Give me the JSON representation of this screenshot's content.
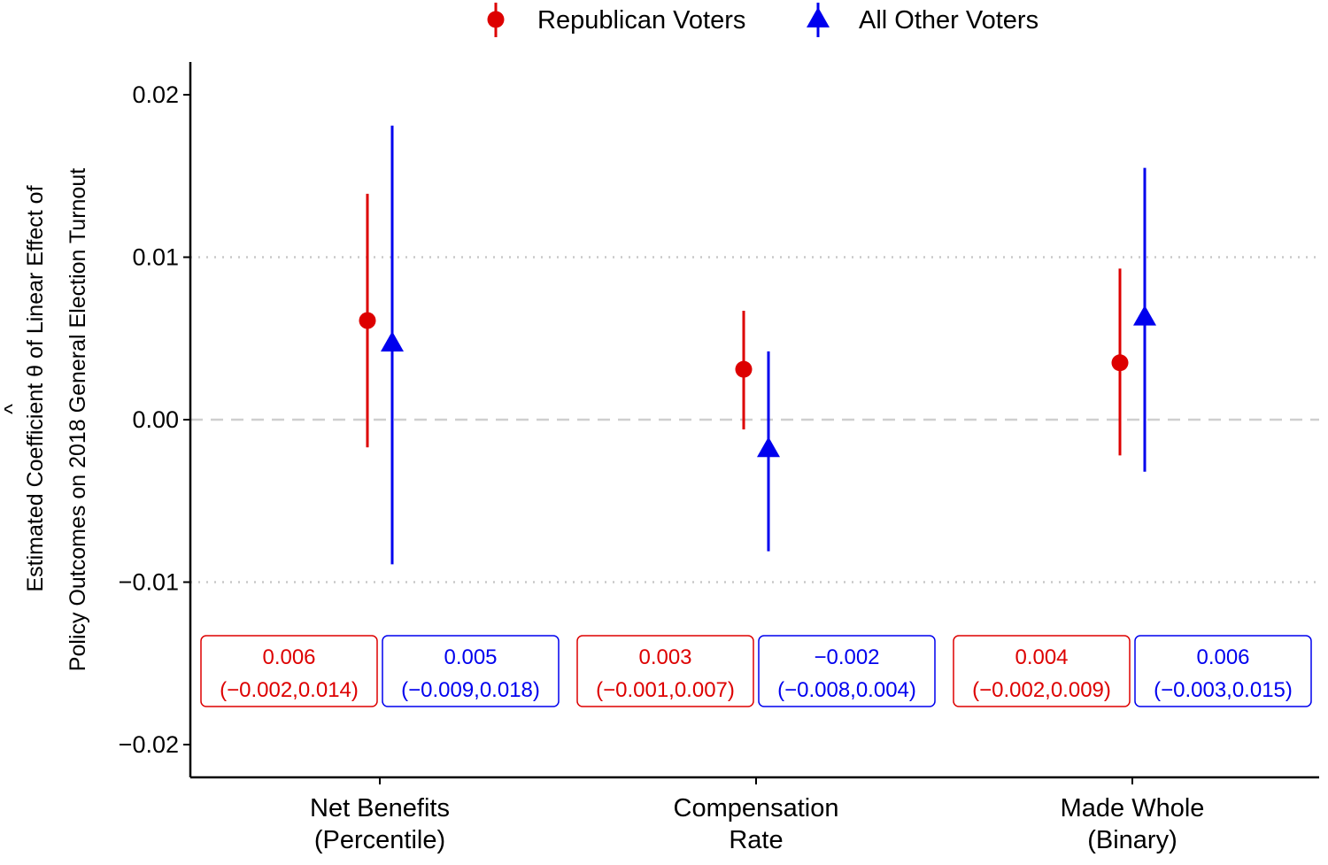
{
  "chart_data": {
    "type": "scatter",
    "title": "",
    "ylabel_line1": "Estimated Coefficient θ of Linear Effect of",
    "ylabel_hat": "^",
    "ylabel_line2": "Policy Outcomes on 2018 General Election Turnout",
    "xlabel": "",
    "ylim": [
      -0.022,
      0.022
    ],
    "yticks": [
      0.02,
      0.01,
      0.0,
      -0.01,
      -0.02
    ],
    "ytick_labels": [
      "0.02",
      "0.01",
      "0.00",
      "−0.01",
      "−0.02"
    ],
    "categories": [
      {
        "line1": "Net Benefits",
        "line2": "(Percentile)"
      },
      {
        "line1": "Compensation",
        "line2": "Rate"
      },
      {
        "line1": "Made Whole",
        "line2": "(Binary)"
      }
    ],
    "grid": "dotted horizontal at ±0.01, dashed at 0",
    "legend_position": "top",
    "series": [
      {
        "name": "Republican Voters",
        "color": "#dd0000",
        "marker": "circle",
        "estimates": [
          0.0061,
          0.0031,
          0.0035
        ],
        "ci_low": [
          -0.0017,
          -0.0006,
          -0.0022
        ],
        "ci_high": [
          0.0139,
          0.0067,
          0.0093
        ],
        "box_value_labels": [
          "0.006",
          "0.003",
          "0.004"
        ],
        "box_ci_labels": [
          "(−0.002,0.014)",
          "(−0.001,0.007)",
          "(−0.002,0.009)"
        ]
      },
      {
        "name": "All Other Voters",
        "color": "#0000ee",
        "marker": "triangle",
        "estimates": [
          0.0047,
          -0.0018,
          0.0063
        ],
        "ci_low": [
          -0.0089,
          -0.0081,
          -0.0032
        ],
        "ci_high": [
          0.0181,
          0.0042,
          0.0155
        ],
        "box_value_labels": [
          "0.005",
          "−0.002",
          "0.006"
        ],
        "box_ci_labels": [
          "(−0.009,0.018)",
          "(−0.008,0.004)",
          "(−0.003,0.015)"
        ]
      }
    ]
  }
}
